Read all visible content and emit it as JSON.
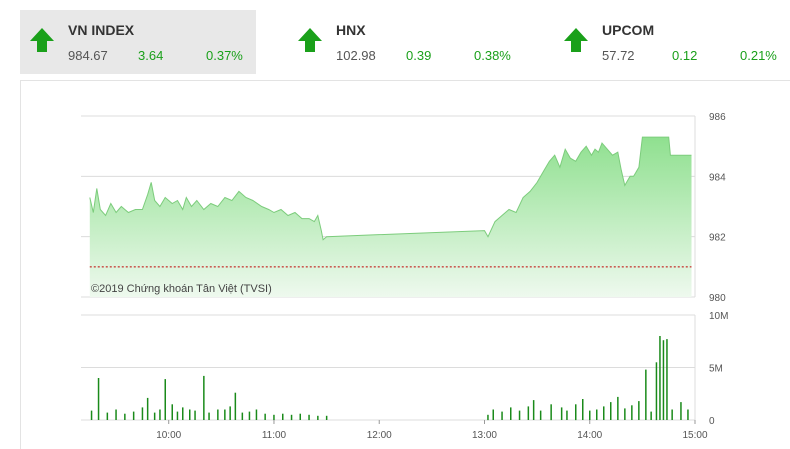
{
  "tickers": [
    {
      "name": "VN INDEX",
      "value": "984.67",
      "change": "3.64",
      "pct": "0.37%",
      "active": true
    },
    {
      "name": "HNX",
      "value": "102.98",
      "change": "0.39",
      "pct": "0.38%",
      "active": false
    },
    {
      "name": "UPCOM",
      "value": "57.72",
      "change": "0.12",
      "pct": "0.21%",
      "active": false
    }
  ],
  "watermark": "©2019 Chứng khoán Tân Việt (TVSI)",
  "colors": {
    "up": "#1aa01a",
    "fill_top": "#8fe08f",
    "fill_bottom": "#e8f8e8",
    "line": "#7ccc7c",
    "ref_line": "#c00000",
    "volume": "#1a8a1a"
  },
  "chart_data": {
    "type": "area",
    "price_axis": {
      "ticks": [
        986,
        984,
        982,
        980
      ],
      "labels": [
        "986",
        "984",
        "982",
        "980"
      ],
      "ylim": [
        980,
        986
      ]
    },
    "reference_value": 981.0,
    "volume_axis": {
      "ticks": [
        10,
        5,
        0
      ],
      "labels": [
        "10M",
        "5M",
        "0"
      ],
      "ylim": [
        0,
        10
      ]
    },
    "x_axis": {
      "labels": [
        "10:00",
        "11:00",
        "12:00",
        "13:00",
        "14:00",
        "15:00"
      ]
    },
    "price_series": [
      [
        "09:15",
        983.3
      ],
      [
        "09:17",
        982.8
      ],
      [
        "09:19",
        983.6
      ],
      [
        "09:21",
        982.9
      ],
      [
        "09:24",
        982.7
      ],
      [
        "09:27",
        983.1
      ],
      [
        "09:30",
        982.8
      ],
      [
        "09:33",
        983.0
      ],
      [
        "09:37",
        982.8
      ],
      [
        "09:41",
        982.9
      ],
      [
        "09:45",
        982.9
      ],
      [
        "09:48",
        983.4
      ],
      [
        "09:50",
        983.8
      ],
      [
        "09:52",
        983.2
      ],
      [
        "09:55",
        983.0
      ],
      [
        "09:58",
        983.3
      ],
      [
        "10:02",
        983.1
      ],
      [
        "10:05",
        983.2
      ],
      [
        "10:08",
        982.9
      ],
      [
        "10:10",
        983.3
      ],
      [
        "10:13",
        983.0
      ],
      [
        "10:16",
        983.2
      ],
      [
        "10:20",
        982.9
      ],
      [
        "10:24",
        983.1
      ],
      [
        "10:28",
        983.0
      ],
      [
        "10:32",
        983.3
      ],
      [
        "10:36",
        983.2
      ],
      [
        "10:40",
        983.5
      ],
      [
        "10:44",
        983.3
      ],
      [
        "10:48",
        983.2
      ],
      [
        "10:53",
        983.0
      ],
      [
        "10:57",
        982.9
      ],
      [
        "11:00",
        982.8
      ],
      [
        "11:04",
        982.9
      ],
      [
        "11:08",
        982.7
      ],
      [
        "11:12",
        982.8
      ],
      [
        "11:16",
        982.6
      ],
      [
        "11:20",
        982.6
      ],
      [
        "11:23",
        982.5
      ],
      [
        "11:25",
        982.7
      ],
      [
        "11:27",
        982.2
      ],
      [
        "11:28",
        981.9
      ],
      [
        "11:30",
        982.0
      ],
      [
        "13:00",
        982.2
      ],
      [
        "13:02",
        982.0
      ],
      [
        "13:06",
        982.5
      ],
      [
        "13:10",
        982.7
      ],
      [
        "13:14",
        982.9
      ],
      [
        "13:18",
        982.8
      ],
      [
        "13:22",
        983.3
      ],
      [
        "13:26",
        983.5
      ],
      [
        "13:30",
        983.8
      ],
      [
        "13:34",
        984.2
      ],
      [
        "13:37",
        984.5
      ],
      [
        "13:40",
        984.7
      ],
      [
        "13:43",
        984.3
      ],
      [
        "13:46",
        984.9
      ],
      [
        "13:49",
        984.6
      ],
      [
        "13:52",
        984.5
      ],
      [
        "13:55",
        984.8
      ],
      [
        "13:58",
        985.0
      ],
      [
        "14:01",
        984.7
      ],
      [
        "14:03",
        984.9
      ],
      [
        "14:05",
        984.8
      ],
      [
        "14:07",
        985.1
      ],
      [
        "14:10",
        984.9
      ],
      [
        "14:13",
        984.7
      ],
      [
        "14:16",
        984.8
      ],
      [
        "14:18",
        984.2
      ],
      [
        "14:20",
        983.7
      ],
      [
        "14:23",
        984.0
      ],
      [
        "14:25",
        984.0
      ],
      [
        "14:28",
        984.3
      ],
      [
        "14:30",
        985.3
      ],
      [
        "14:45",
        985.3
      ],
      [
        "14:46",
        984.7
      ],
      [
        "14:58",
        984.7
      ]
    ],
    "volume_series": [
      [
        "09:16",
        0.9
      ],
      [
        "09:20",
        4.0
      ],
      [
        "09:25",
        0.7
      ],
      [
        "09:30",
        1.0
      ],
      [
        "09:35",
        0.6
      ],
      [
        "09:40",
        0.8
      ],
      [
        "09:45",
        1.2
      ],
      [
        "09:48",
        2.1
      ],
      [
        "09:52",
        0.7
      ],
      [
        "09:55",
        1.0
      ],
      [
        "09:58",
        3.9
      ],
      [
        "10:02",
        1.5
      ],
      [
        "10:05",
        0.8
      ],
      [
        "10:08",
        1.2
      ],
      [
        "10:12",
        1.0
      ],
      [
        "10:15",
        0.9
      ],
      [
        "10:20",
        4.2
      ],
      [
        "10:23",
        0.7
      ],
      [
        "10:28",
        1.0
      ],
      [
        "10:32",
        1.0
      ],
      [
        "10:35",
        1.3
      ],
      [
        "10:38",
        2.6
      ],
      [
        "10:42",
        0.7
      ],
      [
        "10:46",
        0.8
      ],
      [
        "10:50",
        1.0
      ],
      [
        "10:55",
        0.6
      ],
      [
        "11:00",
        0.5
      ],
      [
        "11:05",
        0.6
      ],
      [
        "11:10",
        0.5
      ],
      [
        "11:15",
        0.6
      ],
      [
        "11:20",
        0.5
      ],
      [
        "11:25",
        0.4
      ],
      [
        "11:30",
        0.4
      ],
      [
        "13:02",
        0.5
      ],
      [
        "13:05",
        1.0
      ],
      [
        "13:10",
        0.8
      ],
      [
        "13:15",
        1.2
      ],
      [
        "13:20",
        0.9
      ],
      [
        "13:25",
        1.3
      ],
      [
        "13:28",
        1.9
      ],
      [
        "13:32",
        0.9
      ],
      [
        "13:38",
        1.5
      ],
      [
        "13:44",
        1.2
      ],
      [
        "13:47",
        0.9
      ],
      [
        "13:52",
        1.5
      ],
      [
        "13:56",
        2.0
      ],
      [
        "14:00",
        0.9
      ],
      [
        "14:04",
        1.0
      ],
      [
        "14:08",
        1.3
      ],
      [
        "14:12",
        1.7
      ],
      [
        "14:16",
        2.2
      ],
      [
        "14:20",
        1.1
      ],
      [
        "14:24",
        1.4
      ],
      [
        "14:28",
        1.8
      ],
      [
        "14:32",
        4.8
      ],
      [
        "14:35",
        0.8
      ],
      [
        "14:38",
        5.5
      ],
      [
        "14:40",
        8.0
      ],
      [
        "14:42",
        7.6
      ],
      [
        "14:44",
        7.7
      ],
      [
        "14:47",
        1.0
      ],
      [
        "14:52",
        1.7
      ],
      [
        "14:56",
        1.0
      ]
    ]
  }
}
